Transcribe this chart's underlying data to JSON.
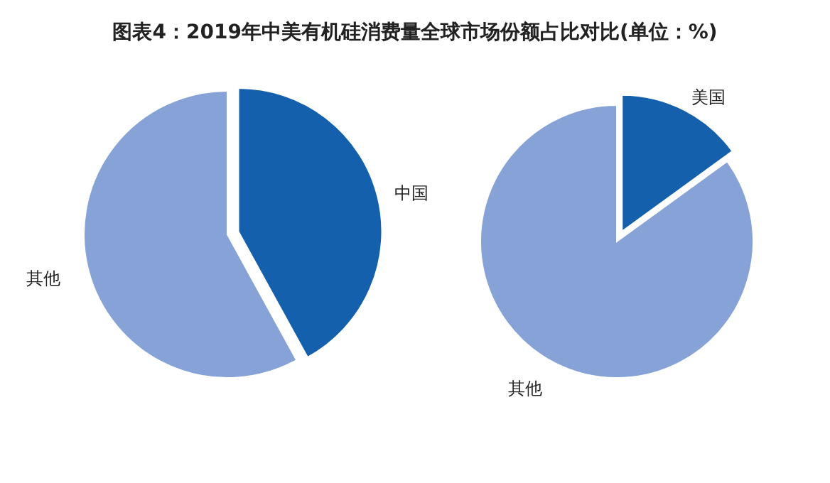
{
  "chart_data": [
    {
      "type": "pie",
      "title": "图表4：2019年中美有机硅消费量全球市场份额占比对比(单位：%)",
      "categories": [
        "中国",
        "其他"
      ],
      "values": [
        42,
        58
      ],
      "colors": [
        "#1560ad",
        "#86a2d6"
      ]
    },
    {
      "type": "pie",
      "categories": [
        "美国",
        "其他"
      ],
      "values": [
        15,
        85
      ],
      "colors": [
        "#1560ad",
        "#86a2d6"
      ]
    }
  ]
}
